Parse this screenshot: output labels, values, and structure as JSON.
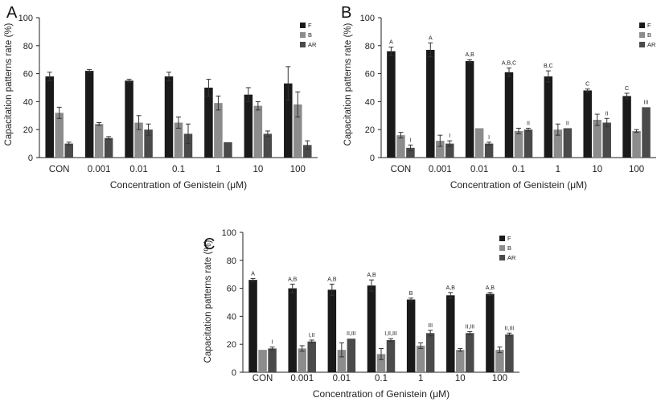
{
  "chart_data": [
    {
      "type": "bar",
      "panel_label": "A",
      "ylabel": "Capacitation patterns rate (%)",
      "xlabel": "Concentration of Genistein (μM)",
      "categories": [
        "CON",
        "0.001",
        "0.01",
        "0.1",
        "1",
        "10",
        "100"
      ],
      "ylim": [
        0,
        100
      ],
      "yticks": [
        "0",
        "20",
        "40",
        "60",
        "80",
        "100"
      ],
      "grid": false,
      "legend_position": "top-right",
      "series": [
        {
          "name": "F",
          "color": "#1a1a1a",
          "values": [
            58,
            62,
            55,
            58,
            50,
            45,
            53
          ],
          "errors": [
            3,
            1,
            1,
            3,
            6,
            5,
            12
          ],
          "annotations": [
            "",
            "",
            "",
            "",
            "",
            "",
            ""
          ]
        },
        {
          "name": "B",
          "color": "#8c8c8c",
          "values": [
            32,
            24,
            25,
            25,
            39,
            37,
            38
          ],
          "errors": [
            4,
            1,
            5,
            4,
            5,
            3,
            9
          ],
          "annotations": [
            "",
            "",
            "",
            "",
            "",
            "",
            ""
          ]
        },
        {
          "name": "AR",
          "color": "#4a4a4a",
          "values": [
            10,
            14,
            20,
            17,
            11,
            17,
            9
          ],
          "errors": [
            1,
            1,
            4,
            7,
            0,
            2,
            3
          ],
          "annotations": [
            "",
            "",
            "",
            "",
            "",
            "",
            ""
          ]
        }
      ]
    },
    {
      "type": "bar",
      "panel_label": "B",
      "ylabel": "Capacitation patterns rate (%)",
      "xlabel": "Concentration of Genistein (μM)",
      "categories": [
        "CON",
        "0.001",
        "0.01",
        "0.1",
        "1",
        "10",
        "100"
      ],
      "ylim": [
        0,
        100
      ],
      "yticks": [
        "0",
        "20",
        "40",
        "60",
        "80",
        "100"
      ],
      "grid": false,
      "legend_position": "top-right",
      "series": [
        {
          "name": "F",
          "color": "#1a1a1a",
          "values": [
            76,
            77,
            69,
            61,
            58,
            48,
            44
          ],
          "errors": [
            3,
            5,
            1,
            3,
            4,
            1,
            2
          ],
          "annotations": [
            "A",
            "A",
            "A,B",
            "A,B,C",
            "B,C",
            "C",
            "C"
          ]
        },
        {
          "name": "B",
          "color": "#8c8c8c",
          "values": [
            16,
            12,
            21,
            19,
            20,
            27,
            19
          ],
          "errors": [
            2,
            4,
            0,
            2,
            4,
            4,
            1
          ],
          "annotations": [
            "",
            "",
            "",
            "",
            "",
            "",
            ""
          ]
        },
        {
          "name": "AR",
          "color": "#4a4a4a",
          "values": [
            7,
            10,
            10,
            20,
            21,
            25,
            36
          ],
          "errors": [
            2,
            2,
            1,
            1,
            0,
            3,
            0
          ],
          "annotations": [
            "I",
            "I",
            "I",
            "II",
            "II",
            "II",
            "III"
          ]
        }
      ]
    },
    {
      "type": "bar",
      "panel_label": "C",
      "ylabel": "Capacitation patterns rate (%)",
      "xlabel": "Concentration of Genistein (μM)",
      "categories": [
        "CON",
        "0.001",
        "0.01",
        "0.1",
        "1",
        "10",
        "100"
      ],
      "ylim": [
        0,
        100
      ],
      "yticks": [
        "0",
        "20",
        "40",
        "60",
        "80",
        "100"
      ],
      "grid": false,
      "legend_position": "top-right",
      "series": [
        {
          "name": "F",
          "color": "#1a1a1a",
          "values": [
            66,
            60,
            59,
            62,
            52,
            55,
            56
          ],
          "errors": [
            1,
            3,
            4,
            4,
            1,
            2,
            1
          ],
          "annotations": [
            "A",
            "A,B",
            "A,B",
            "A,B",
            "B",
            "A,B",
            "A,B"
          ]
        },
        {
          "name": "B",
          "color": "#8c8c8c",
          "values": [
            16,
            17,
            16,
            13,
            19,
            16,
            16
          ],
          "errors": [
            0,
            2,
            5,
            4,
            2,
            1,
            2
          ],
          "annotations": [
            "",
            "",
            "",
            "",
            "",
            "",
            ""
          ]
        },
        {
          "name": "AR",
          "color": "#4a4a4a",
          "values": [
            17,
            22,
            24,
            23,
            28,
            28,
            27
          ],
          "errors": [
            1,
            1,
            0,
            1,
            2,
            1,
            1
          ],
          "annotations": [
            "I",
            "I,II",
            "II,III",
            "I,II,III",
            "III",
            "II,III",
            "II,III"
          ]
        }
      ]
    }
  ]
}
